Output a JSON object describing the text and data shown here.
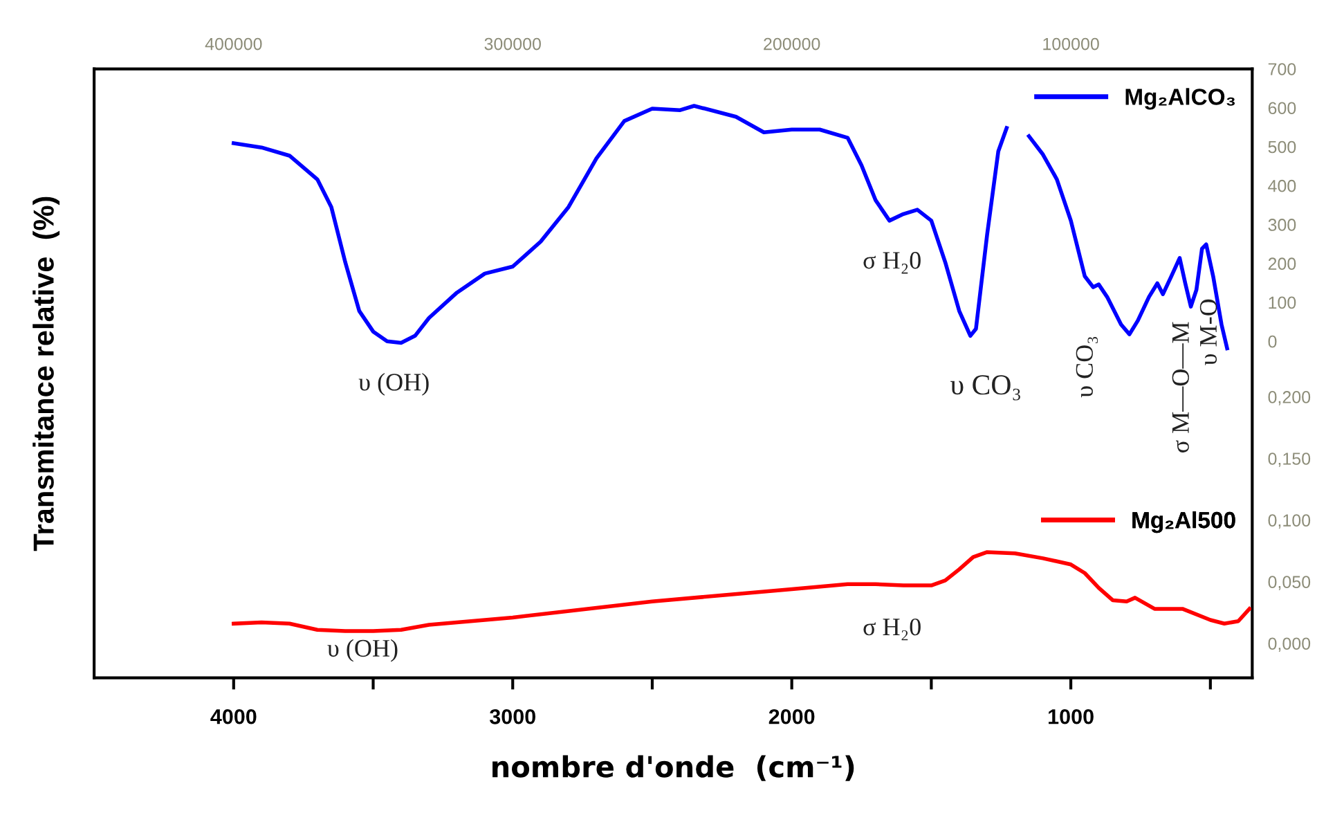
{
  "chart_data": {
    "type": "line",
    "ylabel": "Transmitance relative  (%)",
    "xlabel": "nombre d'onde  (cm⁻¹)",
    "xlim": [
      4500,
      350
    ],
    "xticks": [
      4000,
      {
        "value": 3500,
        "label": null
      },
      3000,
      {
        "value": 2500,
        "label": null
      },
      2000,
      {
        "value": 1500,
        "label": null
      },
      1000,
      {
        "value": 500,
        "label": null
      }
    ],
    "x2lim": [
      450000,
      35000
    ],
    "x2ticks": [
      400000,
      300000,
      200000,
      100000
    ],
    "y2lim": [
      -865,
      700
    ],
    "y2ticks": [
      0,
      100,
      200,
      300,
      400,
      500,
      600,
      700
    ],
    "y3lim": [
      -0.028,
      0.466
    ],
    "y3ticks": [
      {
        "value": 0.0,
        "label": "0,000"
      },
      {
        "value": 0.05,
        "label": "0,050"
      },
      {
        "value": 0.1,
        "label": "0,100"
      },
      {
        "value": 0.15,
        "label": "0,150"
      },
      {
        "value": 0.2,
        "label": "0,200"
      }
    ],
    "legend": "right",
    "grid": false,
    "line_style": "solid",
    "marker": "none",
    "series": [
      {
        "name": "Mg₂AlCO₃",
        "color": "#0000ff",
        "axis": "y2",
        "x": [
          4000,
          3900,
          3800,
          3700,
          3650,
          3600,
          3550,
          3500,
          3450,
          3400,
          3350,
          3300,
          3200,
          3100,
          3000,
          2900,
          2800,
          2700,
          2600,
          2500,
          2400,
          2350,
          2200,
          2100,
          2000,
          1900,
          1800,
          1750,
          1700,
          1650,
          1600,
          1550,
          1500,
          1450,
          1400,
          1360,
          1340,
          1300,
          1260,
          1230,
          1190,
          1150,
          1100,
          1050,
          1000,
          950,
          920,
          900,
          870,
          820,
          790,
          760,
          720,
          690,
          670,
          640,
          610,
          590,
          570,
          550,
          530,
          515,
          490,
          460,
          440
        ],
        "values": [
          509,
          498,
          477,
          416,
          345,
          203,
          78,
          25,
          0,
          -4,
          14,
          60,
          125,
          174,
          192,
          256,
          345,
          470,
          566,
          598,
          594,
          605,
          577,
          537,
          544,
          544,
          523,
          452,
          363,
          310,
          327,
          338,
          310,
          203,
          78,
          14,
          32,
          274,
          488,
          548,
          null,
          527,
          480,
          416,
          310,
          167,
          139,
          146,
          114,
          43,
          18,
          53,
          114,
          149,
          121,
          167,
          214,
          149,
          89,
          132,
          238,
          249,
          167,
          43,
          -18
        ]
      },
      {
        "name": "Mg₂Al500",
        "color": "#ff0000",
        "axis": "y3",
        "x": [
          4000,
          3900,
          3800,
          3700,
          3600,
          3500,
          3400,
          3300,
          3000,
          2500,
          2000,
          1800,
          1700,
          1600,
          1500,
          1450,
          1400,
          1350,
          1300,
          1200,
          1100,
          1000,
          950,
          900,
          850,
          800,
          770,
          700,
          650,
          600,
          500,
          450,
          400,
          360
        ],
        "values": [
          0.016,
          0.017,
          0.016,
          0.011,
          0.01,
          0.01,
          0.011,
          0.015,
          0.021,
          0.034,
          0.044,
          0.048,
          0.048,
          0.047,
          0.047,
          0.051,
          0.06,
          0.07,
          0.074,
          0.073,
          0.069,
          0.064,
          0.057,
          0.045,
          0.035,
          0.034,
          0.037,
          0.028,
          0.028,
          0.028,
          0.019,
          0.016,
          0.018,
          0.028
        ]
      }
    ],
    "annotations": [
      "υ (OH)",
      "σ H₂0",
      "υ CO₃",
      "υ CO₃",
      "σ M—O—M",
      "υ M-O",
      "υ (OH)",
      "σ H₂0"
    ]
  }
}
